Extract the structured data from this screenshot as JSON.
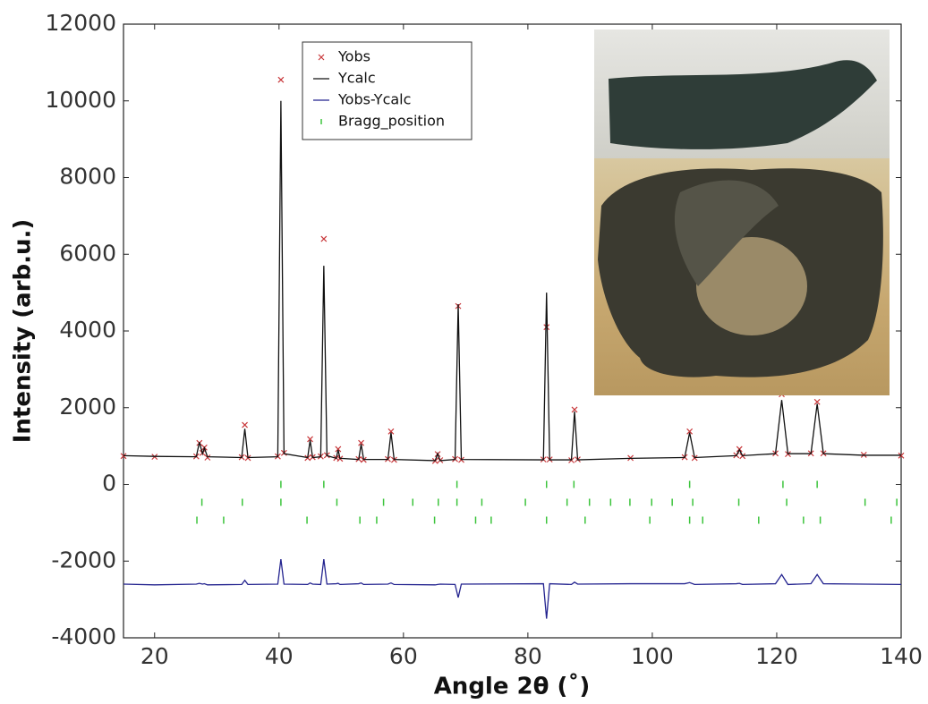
{
  "chart_data": {
    "type": "rietveld",
    "x_label": "Angle 2θ (˚)",
    "y_label": "Intensity (arb.u.)",
    "xlim": [
      15,
      140
    ],
    "ylim": [
      -4000,
      12000
    ],
    "xticks": [
      20,
      40,
      60,
      80,
      100,
      120,
      140
    ],
    "yticks": [
      -4000,
      -2000,
      0,
      2000,
      4000,
      6000,
      8000,
      10000,
      12000
    ],
    "x": [
      15,
      20,
      26.7,
      27.2,
      27.7,
      28.0,
      28.5,
      34.0,
      34.5,
      35.0,
      39.8,
      40.3,
      40.8,
      44.6,
      45.0,
      45.4,
      46.7,
      47.2,
      47.7,
      49.2,
      49.5,
      49.8,
      52.8,
      53.2,
      53.6,
      57.5,
      58.0,
      58.5,
      65.1,
      65.5,
      65.9,
      68.3,
      68.8,
      69.3,
      82.5,
      83.0,
      83.5,
      87.0,
      87.5,
      88.0,
      96.5,
      105.2,
      106.0,
      106.8,
      113.5,
      114.0,
      114.5,
      119.8,
      120.8,
      121.8,
      125.5,
      126.5,
      127.5,
      134,
      140
    ],
    "series": [
      {
        "name": "Yobs",
        "color": "#c8373a",
        "style": "marker",
        "values": [
          740,
          720,
          730,
          1080,
          820,
          960,
          700,
          710,
          1550,
          690,
          730,
          10550,
          820,
          690,
          1180,
          710,
          730,
          6400,
          760,
          690,
          920,
          670,
          660,
          1080,
          640,
          660,
          1380,
          640,
          610,
          790,
          630,
          660,
          4650,
          640,
          650,
          4100,
          650,
          630,
          1950,
          650,
          690,
          710,
          1380,
          690,
          760,
          920,
          740,
          810,
          2350,
          790,
          810,
          2150,
          810,
          770,
          750
        ]
      },
      {
        "name": "Ycalc",
        "color": "#111111",
        "style": "line",
        "values": [
          750,
          730,
          720,
          1100,
          800,
          950,
          720,
          700,
          1450,
          700,
          720,
          10000,
          800,
          700,
          1150,
          700,
          720,
          5700,
          750,
          680,
          900,
          680,
          650,
          1050,
          650,
          650,
          1350,
          650,
          620,
          800,
          620,
          650,
          4700,
          650,
          640,
          5000,
          640,
          640,
          1900,
          640,
          680,
          700,
          1350,
          700,
          750,
          900,
          750,
          800,
          2200,
          800,
          800,
          2100,
          800,
          760,
          760
        ]
      },
      {
        "name": "Yobs-Ycalc",
        "color": "#23238f",
        "style": "line",
        "values": [
          -2600,
          -2620,
          -2600,
          -2580,
          -2600,
          -2590,
          -2620,
          -2610,
          -2500,
          -2610,
          -2600,
          -1950,
          -2600,
          -2610,
          -2570,
          -2600,
          -2610,
          -1950,
          -2600,
          -2590,
          -2580,
          -2610,
          -2590,
          -2570,
          -2610,
          -2600,
          -2570,
          -2610,
          -2620,
          -2610,
          -2600,
          -2610,
          -2950,
          -2600,
          -2590,
          -3500,
          -2590,
          -2610,
          -2550,
          -2600,
          -2590,
          -2590,
          -2560,
          -2610,
          -2590,
          -2580,
          -2610,
          -2590,
          -2350,
          -2610,
          -2590,
          -2350,
          -2590,
          -2600,
          -2610
        ]
      }
    ],
    "bragg": {
      "name": "Bragg_position",
      "color": "#3cc43c",
      "positions": [
        [
          40.3,
          47.2,
          68.6,
          83.0,
          87.4,
          106,
          121,
          126.5
        ],
        [
          27.6,
          34.1,
          40.3,
          49.3,
          56.8,
          61.5,
          65.6,
          68.6,
          72.6,
          79.6,
          86.3,
          89.9,
          93.3,
          96.4,
          99.9,
          103.2,
          106.5,
          113.9,
          121.6,
          134.2,
          139.3
        ],
        [
          26.8,
          31.1,
          44.5,
          53.0,
          55.7,
          65.0,
          71.6,
          74.1,
          83.0,
          89.2,
          99.6,
          106,
          108.1,
          117.1,
          124.3,
          127,
          138.4
        ]
      ]
    }
  }
}
